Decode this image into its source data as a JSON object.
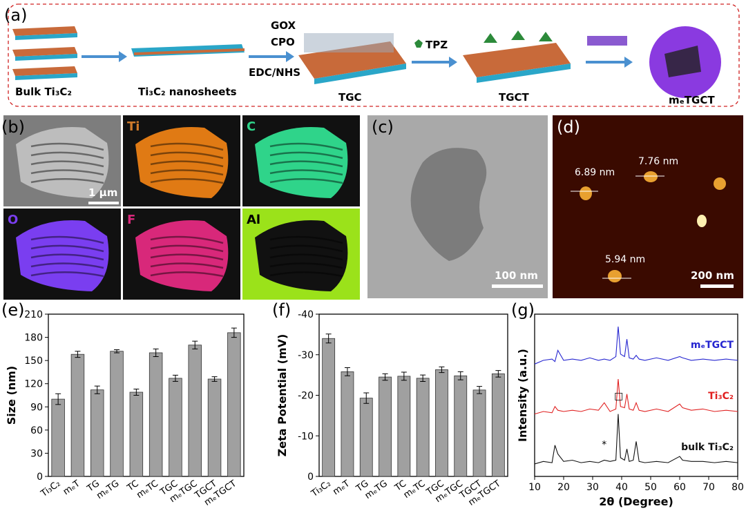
{
  "figure": {
    "scheme": {
      "panel": "(a)",
      "bulk": "Bulk Ti₃C₂",
      "nanosheets": "Ti₃C₂ nanosheets",
      "gox": "GOX",
      "cpo": "CPO",
      "edc": "EDC/NHS",
      "tgc": "TGC",
      "tpz": "TPZ",
      "tgct": "TGCT",
      "metgct": "mₑTGCT"
    },
    "eds": {
      "panel": "(b)",
      "scale": "1 μm",
      "maps": [
        "Ti",
        "C",
        "O",
        "F",
        "Al"
      ]
    },
    "tem": {
      "panel": "(c)",
      "scale": "100 nm"
    },
    "afm": {
      "panel": "(d)",
      "heights": [
        "6.89 nm",
        "7.76 nm",
        "5.94 nm"
      ],
      "scale": "200 nm"
    }
  },
  "chart_data": [
    {
      "type": "bar",
      "panel": "(e)",
      "ylabel": "Size (nm)",
      "categories": [
        "Ti₃C₂",
        "mₑT",
        "TG",
        "mₑTG",
        "TC",
        "mₑTC",
        "TGC",
        "mₑTGC",
        "TGCT",
        "mₑTGCT"
      ],
      "values": [
        100,
        158,
        112,
        162,
        109,
        160,
        127,
        170,
        126,
        186
      ],
      "errors": [
        7,
        4,
        5,
        2,
        4,
        5,
        4,
        5,
        3,
        6
      ],
      "color": "#a0a0a0",
      "ylim": [
        0,
        210
      ],
      "yticks": [
        0,
        30,
        60,
        90,
        120,
        150,
        180,
        210
      ]
    },
    {
      "type": "bar",
      "panel": "(f)",
      "ylabel": "Zeta Potential (mV)",
      "categories": [
        "Ti₃C₂",
        "mₑT",
        "TG",
        "mₑTG",
        "TC",
        "mₑTC",
        "TGC",
        "mₑTGC",
        "TGCT",
        "mₑTGCT"
      ],
      "values": [
        -34,
        -25.8,
        -19.3,
        -24.5,
        -24.7,
        -24.2,
        -26.3,
        -24.8,
        -21.3,
        -25.3
      ],
      "errors": [
        1.1,
        1,
        1.3,
        0.8,
        1,
        0.8,
        0.7,
        1,
        0.9,
        0.8
      ],
      "color": "#a0a0a0",
      "ylim": [
        0,
        -40
      ],
      "yticks": [
        0,
        -10,
        -20,
        -30,
        -40
      ]
    },
    {
      "type": "line",
      "panel": "(g)",
      "xlabel": "2θ (Degree)",
      "ylabel": "Intensity (a.u.)",
      "x": [
        10,
        13,
        16,
        17,
        18,
        20,
        23,
        26,
        29,
        32,
        34,
        36,
        38,
        38.8,
        39.6,
        41,
        41.8,
        42.6,
        44,
        45,
        46,
        48,
        52,
        56,
        60,
        61,
        64,
        68,
        72,
        76,
        80
      ],
      "series": [
        {
          "name": "mₑTGCT",
          "color": "#2626d0",
          "values": [
            9,
            9.3,
            9.4,
            9.2,
            10.1,
            9.3,
            9.4,
            9.3,
            9.5,
            9.3,
            9.4,
            9.3,
            9.6,
            12,
            9.8,
            9.6,
            11,
            9.5,
            9.4,
            9.7,
            9.4,
            9.3,
            9.5,
            9.3,
            9.6,
            9.5,
            9.3,
            9.4,
            9.3,
            9.4,
            9.3
          ]
        },
        {
          "name": "Ti₃C₂",
          "color": "#e02020",
          "values": [
            5,
            5.2,
            5.1,
            5.6,
            5.3,
            5.2,
            5.3,
            5.2,
            5.4,
            5.3,
            5.9,
            5.2,
            5.4,
            7.8,
            5.6,
            5.5,
            6.6,
            5.4,
            5.3,
            5.9,
            5.3,
            5.2,
            5.4,
            5.2,
            5.8,
            5.5,
            5.3,
            5.4,
            5.2,
            5.3,
            5.2
          ]
        },
        {
          "name": "bulk Ti₃C₂",
          "color": "#111111",
          "values": [
            1,
            1.2,
            1.1,
            2.5,
            1.8,
            1.2,
            1.3,
            1.1,
            1.2,
            1.1,
            1.3,
            1.2,
            1.3,
            5,
            1.5,
            1.3,
            2.2,
            1.2,
            1.3,
            2.8,
            1.2,
            1.1,
            1.2,
            1.1,
            1.6,
            1.3,
            1.2,
            1.2,
            1.1,
            1.2,
            1.1
          ]
        }
      ],
      "annotations": [
        {
          "text": "*",
          "x": 34,
          "y": 2.3
        },
        {
          "text": "□",
          "x": 39,
          "y": 6.2
        }
      ],
      "xlim": [
        10,
        80
      ],
      "xticks": [
        10,
        20,
        30,
        40,
        50,
        60,
        70,
        80
      ],
      "ylim": [
        0,
        13
      ]
    }
  ]
}
